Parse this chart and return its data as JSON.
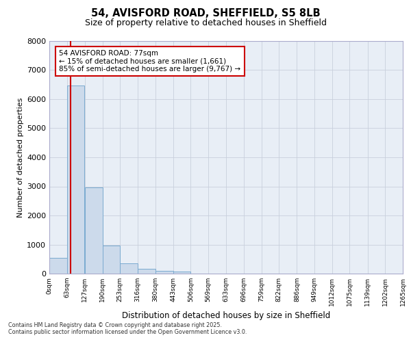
{
  "title1": "54, AVISFORD ROAD, SHEFFIELD, S5 8LB",
  "title2": "Size of property relative to detached houses in Sheffield",
  "xlabel": "Distribution of detached houses by size in Sheffield",
  "ylabel": "Number of detached properties",
  "annotation_title": "54 AVISFORD ROAD: 77sqm",
  "annotation_line2": "← 15% of detached houses are smaller (1,661)",
  "annotation_line3": "85% of semi-detached houses are larger (9,767) →",
  "property_size_sqm": 77,
  "bin_edges": [
    0,
    63,
    127,
    190,
    253,
    316,
    380,
    443,
    506,
    569,
    633,
    696,
    759,
    822,
    886,
    949,
    1012,
    1075,
    1139,
    1202,
    1265
  ],
  "bin_labels": [
    "0sqm",
    "63sqm",
    "127sqm",
    "190sqm",
    "253sqm",
    "316sqm",
    "380sqm",
    "443sqm",
    "506sqm",
    "569sqm",
    "633sqm",
    "696sqm",
    "759sqm",
    "822sqm",
    "886sqm",
    "949sqm",
    "1012sqm",
    "1075sqm",
    "1139sqm",
    "1202sqm",
    "1265sqm"
  ],
  "bar_heights": [
    550,
    6480,
    2970,
    970,
    350,
    175,
    100,
    65,
    0,
    0,
    0,
    0,
    0,
    0,
    0,
    0,
    0,
    0,
    0,
    0
  ],
  "bar_color": "#ccdaeb",
  "bar_edge_color": "#7aaad0",
  "red_line_color": "#cc0000",
  "annotation_box_edge_color": "#cc0000",
  "grid_color": "#c8d0dc",
  "bg_color": "#e8eef6",
  "ylim": [
    0,
    8000
  ],
  "yticks": [
    0,
    1000,
    2000,
    3000,
    4000,
    5000,
    6000,
    7000,
    8000
  ],
  "footer_line1": "Contains HM Land Registry data © Crown copyright and database right 2025.",
  "footer_line2": "Contains public sector information licensed under the Open Government Licence v3.0."
}
